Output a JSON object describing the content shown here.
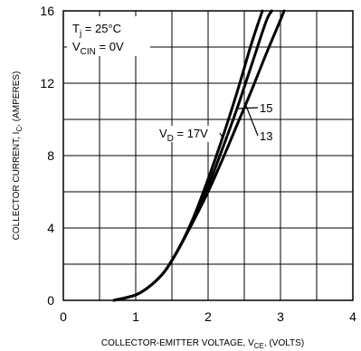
{
  "chart_data": {
    "type": "line",
    "title": "",
    "xlabel": "COLLECTOR-EMITTER VOLTAGE, V",
    "xlabel_sub": "CE",
    "xlabel_suffix": ", (VOLTS)",
    "ylabel": "COLLECTOR CURRENT, I",
    "ylabel_sub": "C",
    "ylabel_suffix": ", (AMPERES)",
    "xlim": [
      0,
      4
    ],
    "ylim": [
      0,
      16
    ],
    "x_ticks": [
      0,
      1,
      2,
      3,
      4
    ],
    "y_ticks": [
      0,
      4,
      8,
      12,
      16
    ],
    "x_tick_labels": [
      "0",
      "1",
      "2",
      "3",
      "4"
    ],
    "y_tick_labels": [
      "0",
      "4",
      "8",
      "12",
      "16"
    ],
    "x_minor_step": 0.5,
    "y_minor_step": 2,
    "grid": true,
    "conditions": [
      {
        "main": "T",
        "sub": "j",
        "rest": " = 25°C"
      },
      {
        "main": "V",
        "sub": "CIN",
        "rest": " = 0V"
      }
    ],
    "series": [
      {
        "name": "V_D = 17V",
        "label_main": "V",
        "label_sub": "D",
        "label_rest": " = 17V",
        "x": [
          0.7,
          1.0,
          1.2,
          1.4,
          1.6,
          1.8,
          2.0,
          2.2,
          2.4,
          2.6,
          2.75
        ],
        "y": [
          0.0,
          0.3,
          0.8,
          1.6,
          2.9,
          4.6,
          6.7,
          9.0,
          11.5,
          14.2,
          16.0
        ]
      },
      {
        "name": "15",
        "label_main": "15",
        "x": [
          0.7,
          1.0,
          1.2,
          1.4,
          1.6,
          1.8,
          2.0,
          2.2,
          2.4,
          2.6,
          2.8,
          2.88
        ],
        "y": [
          0.0,
          0.3,
          0.8,
          1.6,
          2.9,
          4.5,
          6.3,
          8.4,
          10.6,
          13.0,
          15.4,
          16.0
        ]
      },
      {
        "name": "13",
        "label_main": "13",
        "x": [
          0.7,
          1.0,
          1.2,
          1.4,
          1.6,
          1.8,
          2.0,
          2.2,
          2.4,
          2.6,
          2.8,
          3.0,
          3.05
        ],
        "y": [
          0.0,
          0.3,
          0.8,
          1.6,
          2.9,
          4.4,
          6.0,
          7.8,
          9.7,
          11.6,
          13.6,
          15.5,
          16.0
        ]
      }
    ]
  }
}
